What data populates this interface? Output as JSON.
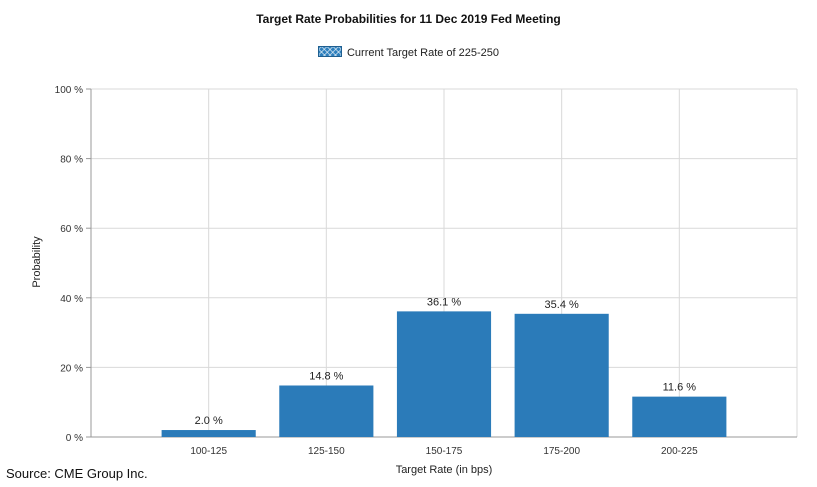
{
  "chart_data": {
    "type": "bar",
    "title": "Target Rate Probabilities for 11 Dec 2019 Fed Meeting",
    "xlabel": "Target Rate (in bps)",
    "ylabel": "Probability",
    "categories": [
      "100-125",
      "125-150",
      "150-175",
      "175-200",
      "200-225"
    ],
    "series": [
      {
        "name": "Current Target Rate of 225-250",
        "values": [
          2.0,
          14.8,
          36.1,
          35.4,
          11.6
        ],
        "labels": [
          "2.0 %",
          "14.8 %",
          "36.1 %",
          "35.4 %",
          "11.6 %"
        ]
      }
    ],
    "ylim": [
      0,
      100
    ],
    "yticks": [
      0,
      20,
      40,
      60,
      80,
      100
    ],
    "ytick_labels": [
      "0 %",
      "20 %",
      "40 %",
      "60 %",
      "80 %",
      "100 %"
    ],
    "grid": true,
    "legend_position": "top-center",
    "bar_color": "#2b7bb9",
    "grid_color": "#d9d9d9",
    "axis_color": "#999999"
  },
  "source": "Source: CME Group Inc."
}
